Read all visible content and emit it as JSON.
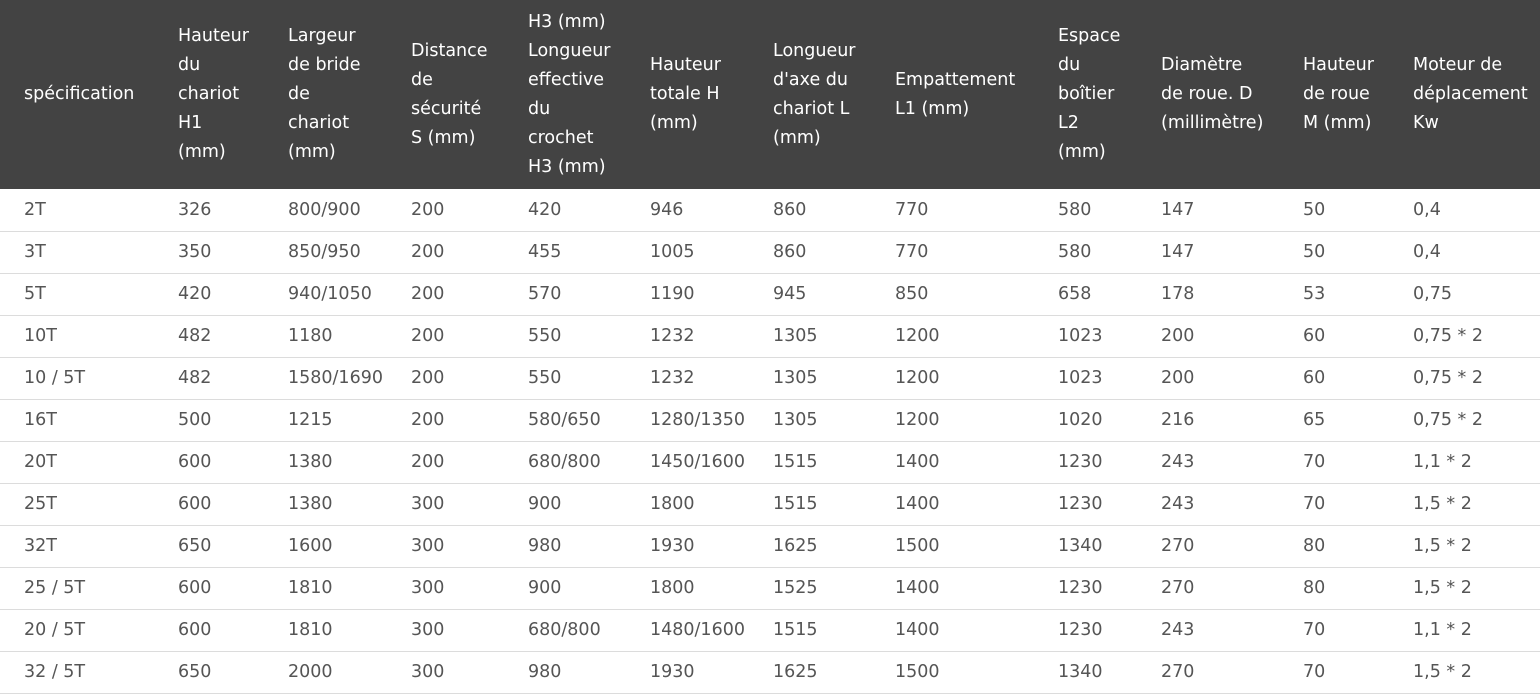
{
  "table": {
    "headers": [
      [
        "spécification"
      ],
      [
        "Hauteur",
        "du",
        "chariot",
        "H1",
        "(mm)"
      ],
      [
        "Largeur",
        "de bride",
        "de",
        "chariot",
        "(mm)"
      ],
      [
        "Distance",
        "de",
        "sécurité",
        "S (mm)"
      ],
      [
        "H3 (mm)",
        "Longueur",
        "effective",
        "du",
        "crochet",
        "H3 (mm)"
      ],
      [
        "Hauteur",
        "totale H",
        "(mm)"
      ],
      [
        "Longueur",
        "d'axe du",
        "chariot L",
        "(mm)"
      ],
      [
        "Empattement",
        "L1 (mm)"
      ],
      [
        "Espace",
        "du",
        "boîtier",
        "L2",
        "(mm)"
      ],
      [
        "Diamètre",
        "de roue. D",
        "(millimètre)"
      ],
      [
        "Hauteur",
        "de roue",
        "M (mm)"
      ],
      [
        "Moteur de",
        "déplacement",
        "Kw"
      ]
    ],
    "rows": [
      [
        "2T",
        "326",
        "800/900",
        "200",
        "420",
        "946",
        "860",
        "770",
        "580",
        "147",
        "50",
        "0,4"
      ],
      [
        "3T",
        "350",
        "850/950",
        "200",
        "455",
        "1005",
        "860",
        "770",
        "580",
        "147",
        "50",
        "0,4"
      ],
      [
        "5T",
        "420",
        "940/1050",
        "200",
        "570",
        "1190",
        "945",
        "850",
        "658",
        "178",
        "53",
        "0,75"
      ],
      [
        "10T",
        "482",
        "1180",
        "200",
        "550",
        "1232",
        "1305",
        "1200",
        "1023",
        "200",
        "60",
        "0,75 * 2"
      ],
      [
        "10 / 5T",
        "482",
        "1580/1690",
        "200",
        "550",
        "1232",
        "1305",
        "1200",
        "1023",
        "200",
        "60",
        "0,75 * 2"
      ],
      [
        "16T",
        "500",
        "1215",
        "200",
        "580/650",
        "1280/1350",
        "1305",
        "1200",
        "1020",
        "216",
        "65",
        "0,75 * 2"
      ],
      [
        "20T",
        "600",
        "1380",
        "200",
        "680/800",
        "1450/1600",
        "1515",
        "1400",
        "1230",
        "243",
        "70",
        "1,1 * 2"
      ],
      [
        "25T",
        "600",
        "1380",
        "300",
        "900",
        "1800",
        "1515",
        "1400",
        "1230",
        "243",
        "70",
        "1,5 * 2"
      ],
      [
        "32T",
        "650",
        "1600",
        "300",
        "980",
        "1930",
        "1625",
        "1500",
        "1340",
        "270",
        "80",
        "1,5 * 2"
      ],
      [
        "25 / 5T",
        "600",
        "1810",
        "300",
        "900",
        "1800",
        "1525",
        "1400",
        "1230",
        "270",
        "80",
        "1,5 * 2"
      ],
      [
        "20 / 5T",
        "600",
        "1810",
        "300",
        "680/800",
        "1480/1600",
        "1515",
        "1400",
        "1230",
        "243",
        "70",
        "1,1 * 2"
      ],
      [
        "32 / 5T",
        "650",
        "2000",
        "300",
        "980",
        "1930",
        "1625",
        "1500",
        "1340",
        "270",
        "70",
        "1,5 * 2"
      ]
    ]
  }
}
